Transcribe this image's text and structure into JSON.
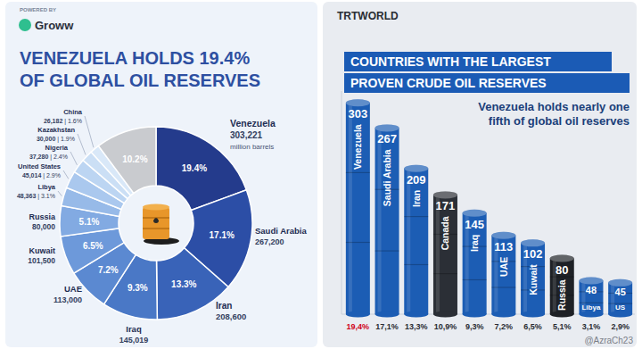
{
  "chart_data": [
    {
      "type": "pie",
      "source_label": "POWERED BY",
      "brand": "Groww",
      "title": "VENEZUELA HOLDS 19.4%\nOF GLOBAL OIL RESERVES",
      "categories": [
        "Venezuela",
        "Saudi Arabia",
        "Iran",
        "Iraq",
        "UAE",
        "Kuwait",
        "Russia",
        "Libya",
        "United States",
        "Nigeria",
        "Kazakhstan",
        "China",
        null
      ],
      "values": [
        19.4,
        17.1,
        13.3,
        9.3,
        7.2,
        6.5,
        5.1,
        3.1,
        2.9,
        2.4,
        1.9,
        1.6,
        10.2
      ],
      "value_labels": [
        "19.4%",
        "17.1%",
        "13.3%",
        "9.3%",
        "7.2%",
        "6.5%",
        "5.1%",
        "3.1%",
        "2.9%",
        "2.4%",
        "1.9%",
        "1.6%",
        "10.2%"
      ],
      "reserves": [
        "303,221",
        "267,200",
        "208,600",
        "145,019",
        "113,000",
        "101,500",
        "80,000",
        "48,363",
        "45,014",
        "37,280",
        "30,000",
        "26,182",
        null
      ],
      "unit": "million barrels",
      "separator": " | ",
      "colors": [
        "#243b8c",
        "#2c4ea6",
        "#3963b8",
        "#4a78c6",
        "#5b89d1",
        "#6d99da",
        "#82aae2",
        "#97bae8",
        "#aac8ee",
        "#bcd5f2",
        "#cbdff5",
        "#d9e8f8",
        "#c9cbcf"
      ],
      "data_labels": true
    },
    {
      "type": "bar",
      "brand": "TRTWORLD",
      "title": "COUNTRIES WITH THE LARGEST\nPROVEN CRUDE OIL RESERVES",
      "subtitle": "Venezuela holds nearly one\nfifth of global oil reserves",
      "categories": [
        "Venezuela",
        "Saudi Arabia",
        "Iran",
        "Canada",
        "Iraq",
        "UAE",
        "Kuwait",
        "Russia",
        "Libya",
        "US"
      ],
      "values": [
        303,
        267,
        209,
        171,
        145,
        113,
        102,
        80,
        48,
        45
      ],
      "colors": [
        "#1c5db4",
        "#1c5db4",
        "#1c5db4",
        "#2b2f36",
        "#1c5db4",
        "#1c5db4",
        "#1c5db4",
        "#1e2126",
        "#1c5db4",
        "#1c5db4"
      ],
      "shares": [
        "19,4%",
        "17,1%",
        "13,3%",
        "10,9%",
        "9,3%",
        "7,2%",
        "6,5%",
        "5,1%",
        "3,1%",
        "2,9%"
      ],
      "ylim": [
        0,
        320
      ],
      "tick_labels": false,
      "data_labels": true,
      "watermark": "@AzraCh23"
    }
  ]
}
